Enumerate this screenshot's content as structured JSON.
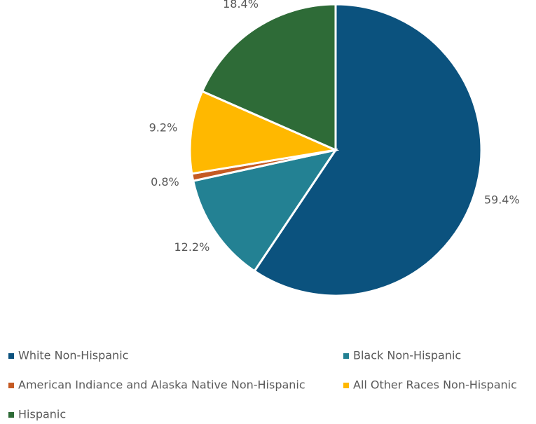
{
  "chart_data": {
    "type": "pie",
    "categories": [
      "White Non-Hispanic",
      "Black Non-Hispanic",
      "American Indiance and Alaska Native Non-Hispanic",
      "All Other Races Non-Hispanic",
      "Hispanic"
    ],
    "values": [
      59.4,
      12.2,
      0.8,
      9.2,
      18.4
    ],
    "value_labels": [
      "59.4%",
      "12.2%",
      "0.8%",
      "9.2%",
      "18.4%"
    ],
    "colors": [
      "#0b527e",
      "#238193",
      "#c55a23",
      "#ffb800",
      "#2e6b37"
    ],
    "legend": "bottom"
  }
}
